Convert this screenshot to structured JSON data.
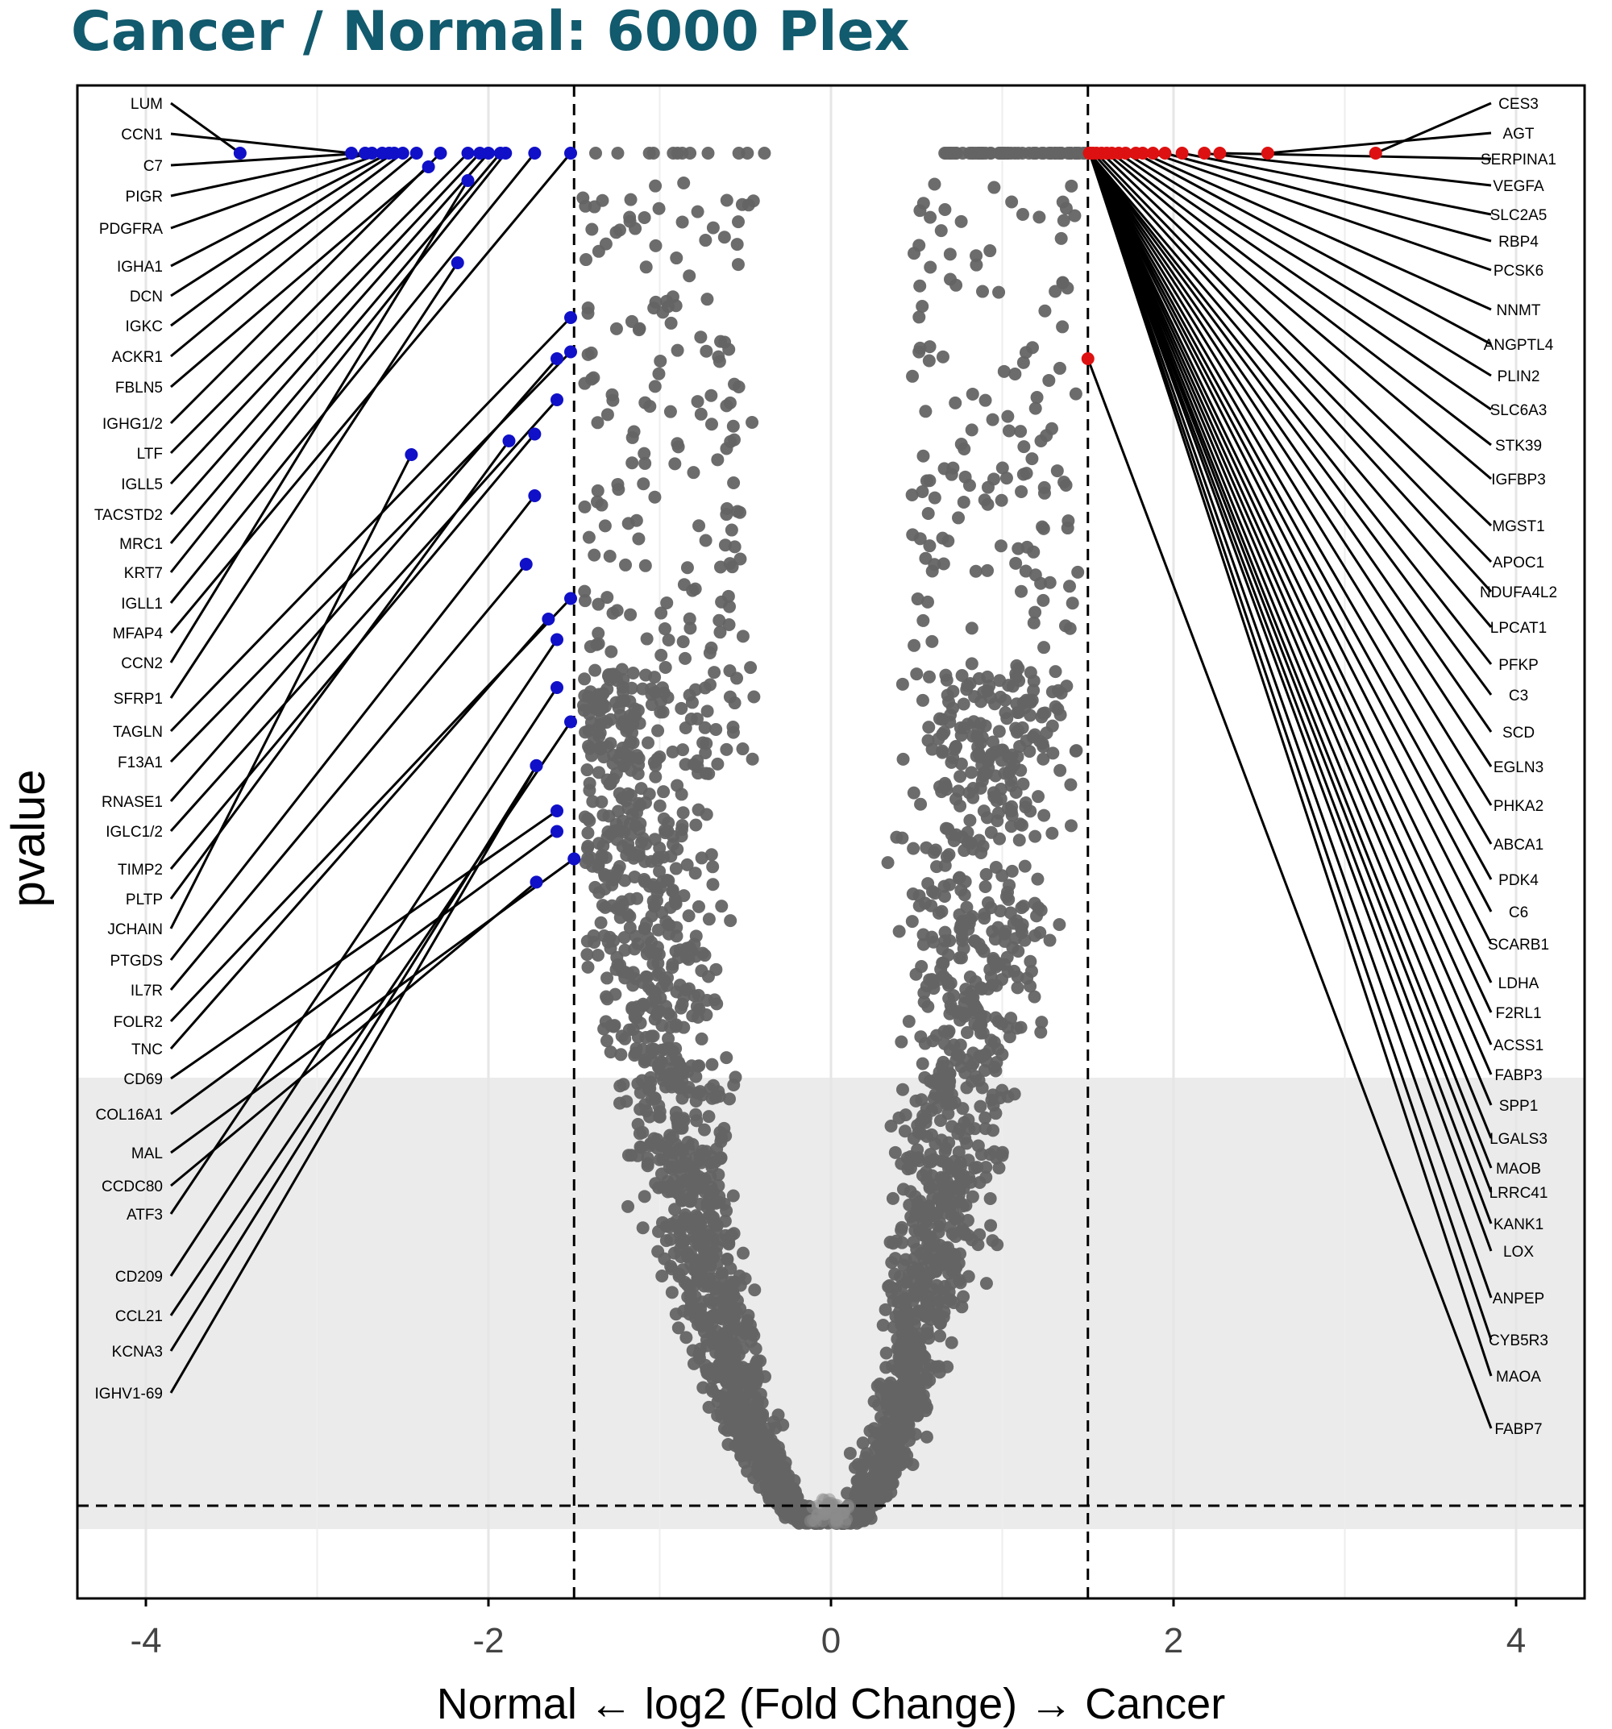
{
  "title": "Cancer / Normal: 6000 Plex",
  "chart_data": {
    "type": "scatter",
    "title": "Cancer / Normal: 6000 Plex",
    "xlabel": "Normal ← log2 (Fold Change) → Cancer",
    "ylabel": "pvalue",
    "xlim": [
      -4.4,
      4.4
    ],
    "x_ticks": [
      -4,
      -2,
      0,
      2,
      4
    ],
    "x_tick_labels": [
      "-4",
      "-2",
      "0",
      "2",
      "4"
    ],
    "fc_thresholds": [
      -1.5,
      1.5
    ],
    "pvalue_threshold_line": true,
    "grid": "vertical",
    "colors": {
      "down": "#1010c8",
      "up": "#dd1111",
      "not_significant": "#646464",
      "shade": "#ebebeb",
      "title": "#125a6d"
    },
    "series": [
      {
        "category": "down",
        "points": [
          {
            "label": "LUM",
            "x": -3.45,
            "y": 1.0
          },
          {
            "label": "CCN1",
            "x": -2.8,
            "y": 1.0
          },
          {
            "label": "C7",
            "x": -2.72,
            "y": 1.0
          },
          {
            "label": "PIGR",
            "x": -2.68,
            "y": 1.0
          },
          {
            "label": "PDGFRA",
            "x": -2.62,
            "y": 1.0
          },
          {
            "label": "IGHA1",
            "x": -2.58,
            "y": 1.0
          },
          {
            "label": "DCN",
            "x": -2.55,
            "y": 1.0
          },
          {
            "label": "IGKC",
            "x": -2.5,
            "y": 1.0
          },
          {
            "label": "ACKR1",
            "x": -2.42,
            "y": 1.0
          },
          {
            "label": "FBLN5",
            "x": -2.35,
            "y": 0.99
          },
          {
            "label": "IGHG1/2",
            "x": -2.28,
            "y": 1.0
          },
          {
            "label": "LTF",
            "x": -2.12,
            "y": 1.0
          },
          {
            "label": "IGLL5",
            "x": -2.05,
            "y": 1.0
          },
          {
            "label": "TACSTD2",
            "x": -2.0,
            "y": 1.0
          },
          {
            "label": "MRC1",
            "x": -1.93,
            "y": 1.0
          },
          {
            "label": "KRT7",
            "x": -1.9,
            "y": 1.0
          },
          {
            "label": "IGLL1",
            "x": -1.73,
            "y": 1.0
          },
          {
            "label": "MFAP4",
            "x": -1.52,
            "y": 1.0
          },
          {
            "label": "CCN2",
            "x": -2.12,
            "y": 0.98
          },
          {
            "label": "SFRP1",
            "x": -2.18,
            "y": 0.92
          },
          {
            "label": "TAGLN",
            "x": -1.52,
            "y": 0.88
          },
          {
            "label": "F13A1",
            "x": -1.52,
            "y": 0.855
          },
          {
            "label": "RNASE1",
            "x": -1.6,
            "y": 0.85
          },
          {
            "label": "IGLC1/2",
            "x": -1.6,
            "y": 0.82
          },
          {
            "label": "TIMP2",
            "x": -1.73,
            "y": 0.795
          },
          {
            "label": "PLTP",
            "x": -1.88,
            "y": 0.79
          },
          {
            "label": "JCHAIN",
            "x": -2.45,
            "y": 0.78
          },
          {
            "label": "PTGDS",
            "x": -1.73,
            "y": 0.75
          },
          {
            "label": "IL7R",
            "x": -1.78,
            "y": 0.7
          },
          {
            "label": "FOLR2",
            "x": -1.52,
            "y": 0.675
          },
          {
            "label": "TNC",
            "x": -1.65,
            "y": 0.66
          },
          {
            "label": "CD69",
            "x": -1.6,
            "y": 0.52
          },
          {
            "label": "COL16A1",
            "x": -1.6,
            "y": 0.505
          },
          {
            "label": "MAL",
            "x": -1.5,
            "y": 0.485
          },
          {
            "label": "CCDC80",
            "x": -1.72,
            "y": 0.468
          }
        ]
      },
      {
        "category": "up",
        "points": [
          {
            "label": "CES3",
            "x": 3.18,
            "y": 1.0
          },
          {
            "label": "AGT",
            "x": 2.55,
            "y": 1.0
          },
          {
            "label": "SERPINA1",
            "x": 2.27,
            "y": 1.0
          },
          {
            "label": "VEGFA",
            "x": 2.18,
            "y": 1.0
          },
          {
            "label": "SLC2A5",
            "x": 2.05,
            "y": 1.0
          },
          {
            "label": "RBP4",
            "x": 1.95,
            "y": 1.0
          },
          {
            "label": "PCSK6",
            "x": 1.88,
            "y": 1.0
          },
          {
            "label": "NNMT",
            "x": 1.82,
            "y": 1.0
          },
          {
            "label": "ANGPTL4",
            "x": 1.78,
            "y": 1.0
          },
          {
            "label": "PLIN2",
            "x": 1.72,
            "y": 1.0
          },
          {
            "label": "SLC6A3",
            "x": 1.68,
            "y": 1.0
          },
          {
            "label": "STK39",
            "x": 1.64,
            "y": 1.0
          },
          {
            "label": "IGFBP3",
            "x": 1.61,
            "y": 1.0
          },
          {
            "label": "MGST1",
            "x": 1.58,
            "y": 1.0
          },
          {
            "label": "APOC1",
            "x": 1.55,
            "y": 1.0
          },
          {
            "label": "NDUFA4L2",
            "x": 1.53,
            "y": 1.0
          },
          {
            "label": "LPCAT1",
            "x": 1.51,
            "y": 1.0
          },
          {
            "label": "PFKP",
            "x": 1.51,
            "y": 1.0
          },
          {
            "label": "C3",
            "x": 1.51,
            "y": 1.0
          },
          {
            "label": "SCD",
            "x": 1.51,
            "y": 1.0
          },
          {
            "label": "EGLN3",
            "x": 1.51,
            "y": 1.0
          },
          {
            "label": "PHKA2",
            "x": 1.51,
            "y": 1.0
          },
          {
            "label": "ABCA1",
            "x": 1.51,
            "y": 1.0
          },
          {
            "label": "PDK4",
            "x": 1.51,
            "y": 1.0
          },
          {
            "label": "C6",
            "x": 1.51,
            "y": 1.0
          },
          {
            "label": "SCARB1",
            "x": 1.51,
            "y": 1.0
          },
          {
            "label": "LDHA",
            "x": 1.51,
            "y": 1.0
          },
          {
            "label": "F2RL1",
            "x": 1.51,
            "y": 1.0
          },
          {
            "label": "ACSS1",
            "x": 1.51,
            "y": 1.0
          },
          {
            "label": "FABP3",
            "x": 1.51,
            "y": 1.0
          },
          {
            "label": "SPP1",
            "x": 1.51,
            "y": 1.0
          },
          {
            "label": "LGALS3",
            "x": 1.51,
            "y": 1.0
          },
          {
            "label": "MAOB",
            "x": 1.51,
            "y": 1.0
          },
          {
            "label": "LRRC41",
            "x": 1.51,
            "y": 1.0
          },
          {
            "label": "KANK1",
            "x": 1.51,
            "y": 1.0
          },
          {
            "label": "LOX",
            "x": 1.51,
            "y": 1.0
          },
          {
            "label": "ANPEP",
            "x": 1.51,
            "y": 1.0
          },
          {
            "label": "CYB5R3",
            "x": 1.51,
            "y": 1.0
          },
          {
            "label": "MAOA",
            "x": 1.51,
            "y": 1.0
          },
          {
            "label": "FABP7",
            "x": 1.5,
            "y": 0.85
          }
        ]
      }
    ],
    "left_unlabeled_labels": [
      "ATF3",
      "CD209",
      "CCL21",
      "KCNA3",
      "IGHV1-69"
    ],
    "not_significant_note": "dense volcano cloud of ~6000 grey points"
  }
}
